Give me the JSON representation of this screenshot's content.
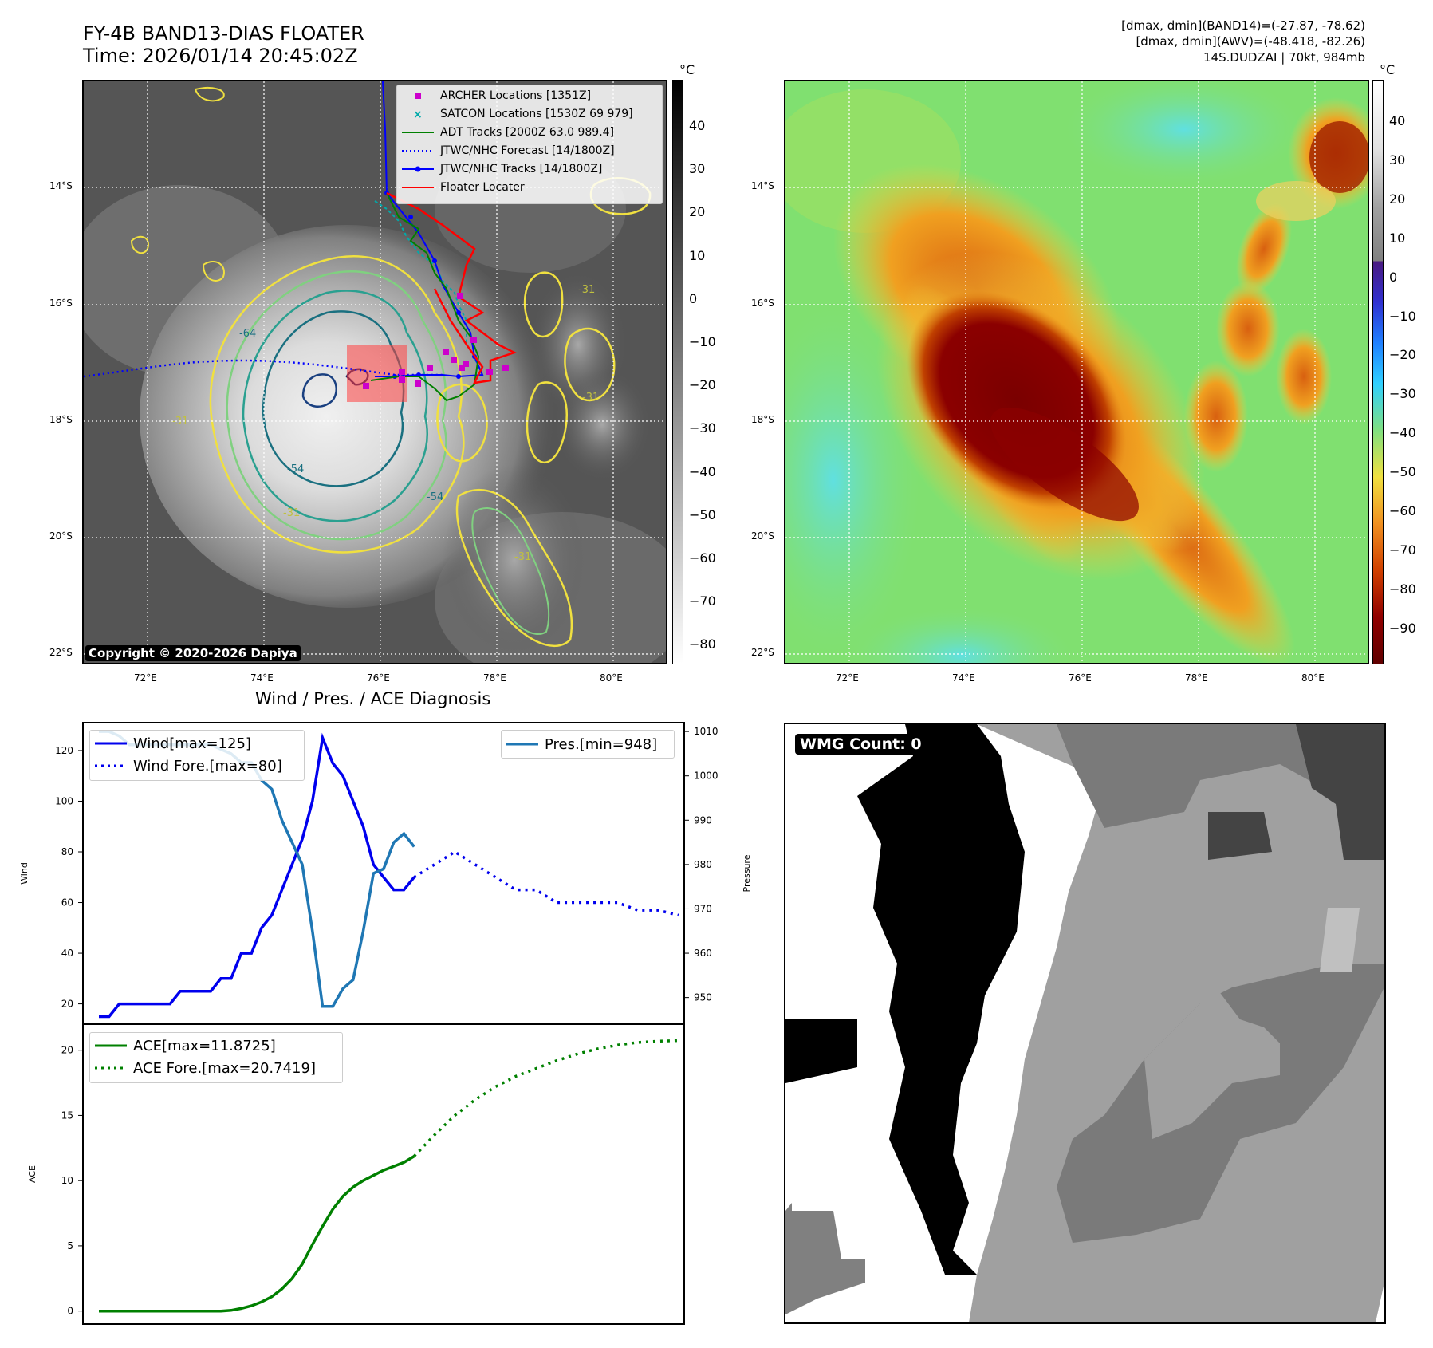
{
  "header": {
    "title_line1": "FY-4B BAND13-DIAS FLOATER",
    "title_line2": "Time: 2026/01/14 20:45:02Z",
    "right_line1": "[dmax, dmin](BAND14)=(-27.87, -78.62)",
    "right_line2": "[dmax, dmin](AWV)=(-48.418, -82.26)",
    "right_line3": "14S.DUDZAI | 70kt, 984mb"
  },
  "map": {
    "lat_ticks": [
      "14°S",
      "16°S",
      "18°S",
      "20°S",
      "22°S"
    ],
    "lon_ticks": [
      "72°E",
      "74°E",
      "76°E",
      "78°E",
      "80°E"
    ],
    "copyright": "Copyright © 2020-2026 Dapiya",
    "colors": {
      "archer": "#cc00cc",
      "satcon": "#00aaaa",
      "adt": "#008000",
      "jtwc": "#0000ff",
      "floater": "#ff0000"
    },
    "legend": [
      {
        "key": "archer",
        "label": "ARCHER Locations [1351Z]"
      },
      {
        "key": "satcon",
        "label": "SATCON Locations [1530Z 69 979]"
      },
      {
        "key": "adt",
        "label": "ADT Tracks [2000Z 63.0 989.4]"
      },
      {
        "key": "forecast",
        "label": "JTWC/NHC Forecast [14/1800Z]"
      },
      {
        "key": "jtwc",
        "label": "JTWC/NHC Tracks [14/1800Z]"
      },
      {
        "key": "floater",
        "label": "Floater Locater"
      }
    ],
    "contour_labels": [
      "-64",
      "-54",
      "-54",
      "-31",
      "-31",
      "-31",
      "-31",
      "-31"
    ]
  },
  "colorbars": {
    "unit": "°C",
    "ir_ticks": [
      "40",
      "30",
      "20",
      "10",
      "0",
      "−10",
      "−20",
      "−30",
      "−40",
      "−50",
      "−60",
      "−70",
      "−80"
    ],
    "awv_ticks": [
      "40",
      "30",
      "20",
      "10",
      "0",
      "−10",
      "−20",
      "−30",
      "−40",
      "−50",
      "−60",
      "−70",
      "−80",
      "−90"
    ]
  },
  "chart_data": [
    {
      "type": "line",
      "title": "Wind / Pres. / ACE Diagnosis",
      "ylabel": "Wind",
      "y2label": "Pressure",
      "ylim": [
        12,
        131
      ],
      "y2lim": [
        944,
        1012
      ],
      "yticks": [
        20,
        40,
        60,
        80,
        100,
        120
      ],
      "y2ticks": [
        950,
        960,
        970,
        980,
        990,
        1000,
        1010
      ],
      "series": [
        {
          "name": "Wind[max=125]",
          "style": "solid",
          "color": "#0000ee",
          "values": [
            15,
            15,
            20,
            20,
            20,
            20,
            20,
            20,
            25,
            25,
            25,
            25,
            30,
            30,
            40,
            40,
            50,
            55,
            65,
            75,
            85,
            100,
            125,
            115,
            110,
            100,
            90,
            75,
            70,
            65,
            65,
            70
          ]
        },
        {
          "name": "Wind Fore.[max=80]",
          "style": "dotted",
          "color": "#0000ee",
          "x_start": 31,
          "step": 2,
          "values": [
            70,
            75,
            80,
            75,
            70,
            65,
            65,
            60,
            60,
            60,
            60,
            57,
            57,
            55
          ]
        },
        {
          "name": "Pres.[min=948]",
          "style": "solid",
          "color": "#1f77b4",
          "axis": "right",
          "values": [
            1010,
            1010,
            1009,
            1007,
            1007,
            1007,
            1007,
            1007,
            1007,
            1007,
            1007,
            1007,
            1006,
            1005,
            1003,
            1003,
            999,
            997,
            990,
            985,
            980,
            965,
            948,
            948,
            952,
            954,
            965,
            978,
            979,
            985,
            987,
            984
          ]
        }
      ]
    },
    {
      "type": "line",
      "ylabel": "ACE",
      "ylim": [
        -1,
        22
      ],
      "yticks": [
        0,
        5,
        10,
        15,
        20
      ],
      "series": [
        {
          "name": "ACE[max=11.8725]",
          "style": "solid",
          "color": "#008000",
          "values": [
            0,
            0,
            0,
            0,
            0,
            0,
            0,
            0,
            0,
            0,
            0,
            0,
            0,
            0.05,
            0.2,
            0.4,
            0.7,
            1.1,
            1.7,
            2.5,
            3.6,
            5.1,
            6.5,
            7.8,
            8.8,
            9.5,
            10.0,
            10.4,
            10.8,
            11.1,
            11.4,
            11.8725
          ]
        },
        {
          "name": "ACE Fore.[max=20.7419]",
          "style": "dotted",
          "color": "#008000",
          "x_start": 31,
          "step": 2,
          "values": [
            11.8725,
            13.5,
            15.0,
            16.2,
            17.2,
            18.0,
            18.6,
            19.2,
            19.7,
            20.1,
            20.4,
            20.6,
            20.7,
            20.7419
          ]
        }
      ]
    }
  ],
  "wmg": {
    "label": "WMG Count: 0"
  }
}
